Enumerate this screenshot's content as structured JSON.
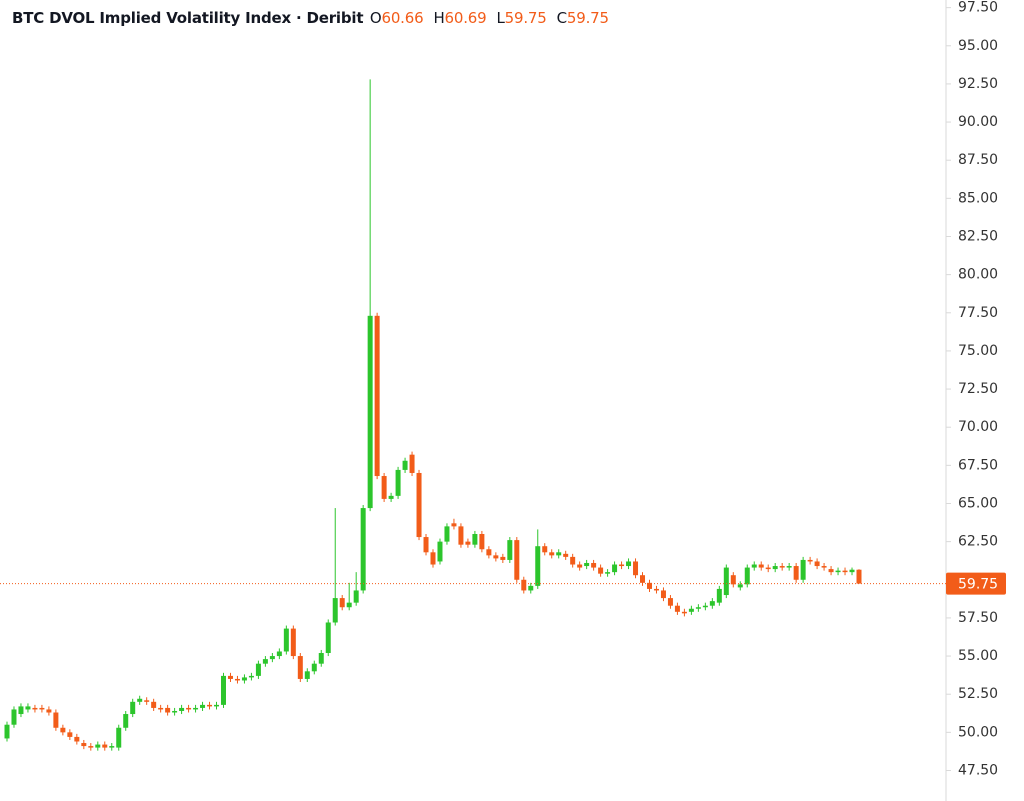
{
  "chart_data": {
    "type": "candlestick",
    "title": "BTC DVOL Implied Volatility Index · Deribit",
    "ohlc_legend": [
      {
        "label": "O",
        "value": 60.66
      },
      {
        "label": "H",
        "value": 60.69
      },
      {
        "label": "L",
        "value": 59.75
      },
      {
        "label": "C",
        "value": 59.75
      }
    ],
    "up_color": "#2cc52c",
    "down_color": "#f25c19",
    "last_price": 59.75,
    "ylim": [
      45.5,
      98.0
    ],
    "yticks": [
      {
        "value": 47.5,
        "label": "47.50"
      },
      {
        "value": 50,
        "label": "50.00"
      },
      {
        "value": 52.5,
        "label": "52.50"
      },
      {
        "value": 55,
        "label": "55.00"
      },
      {
        "value": 57.5,
        "label": "57.50"
      },
      {
        "value": 60,
        "label": "60.00"
      },
      {
        "value": 62.5,
        "label": "62.50"
      },
      {
        "value": 65,
        "label": "65.00"
      },
      {
        "value": 67.5,
        "label": "67.50"
      },
      {
        "value": 70,
        "label": "70.00"
      },
      {
        "value": 72.5,
        "label": "72.50"
      },
      {
        "value": 75,
        "label": "75.00"
      },
      {
        "value": 77.5,
        "label": "77.50"
      },
      {
        "value": 80,
        "label": "80.00"
      },
      {
        "value": 82.5,
        "label": "82.50"
      },
      {
        "value": 85,
        "label": "85.00"
      },
      {
        "value": 87.5,
        "label": "87.50"
      },
      {
        "value": 90,
        "label": "90.00"
      },
      {
        "value": 92.5,
        "label": "92.50"
      },
      {
        "value": 95,
        "label": "95.00"
      },
      {
        "value": 97.5,
        "label": "97.50"
      }
    ],
    "open": [
      49.6,
      50.5,
      51.2,
      51.5,
      51.6,
      51.6,
      51.5,
      51.3,
      50.3,
      50.0,
      49.7,
      49.3,
      49.1,
      49.0,
      49.2,
      49.0,
      49.0,
      50.3,
      51.2,
      52.0,
      52.1,
      52.0,
      51.6,
      51.6,
      51.3,
      51.4,
      51.6,
      51.5,
      51.6,
      51.8,
      51.7,
      51.8,
      53.7,
      53.5,
      53.4,
      53.6,
      53.7,
      54.5,
      54.8,
      55.0,
      55.3,
      56.8,
      55.0,
      53.5,
      54.0,
      54.5,
      55.2,
      57.2,
      58.8,
      58.2,
      58.5,
      59.3,
      64.7,
      77.3,
      66.8,
      65.3,
      65.5,
      67.2,
      68.2,
      67.0,
      62.8,
      61.8,
      61.2,
      62.5,
      63.7,
      63.5,
      62.5,
      62.3,
      63.0,
      62.0,
      61.6,
      61.5,
      61.3,
      62.6,
      60.0,
      59.3,
      59.6,
      62.2,
      61.8,
      61.6,
      61.7,
      61.5,
      61.0,
      60.9,
      61.1,
      60.8,
      60.4,
      60.5,
      61.0,
      60.9,
      61.2,
      60.3,
      59.8,
      59.4,
      59.3,
      58.8,
      58.3,
      57.9,
      57.9,
      58.1,
      58.2,
      58.3,
      58.5,
      59.0,
      60.3,
      59.5,
      59.7,
      60.8,
      61.0,
      60.8,
      60.7,
      60.9,
      60.8,
      60.9,
      60.0,
      61.3,
      61.2,
      60.9,
      60.7,
      60.5,
      60.6,
      60.5,
      60.66
    ],
    "high": [
      50.7,
      51.7,
      51.9,
      51.9,
      51.8,
      51.8,
      51.7,
      51.5,
      50.5,
      50.2,
      49.9,
      49.5,
      49.3,
      49.4,
      49.4,
      49.3,
      50.5,
      51.4,
      52.2,
      52.4,
      52.3,
      52.2,
      51.8,
      51.8,
      51.6,
      51.8,
      51.8,
      51.8,
      52.0,
      52.0,
      52.0,
      53.9,
      53.9,
      53.7,
      53.8,
      53.9,
      54.7,
      55.0,
      55.2,
      55.5,
      57.0,
      57.0,
      55.2,
      54.2,
      54.7,
      55.4,
      57.4,
      64.7,
      59.0,
      59.8,
      60.5,
      64.9,
      92.8,
      77.5,
      67.0,
      65.7,
      67.4,
      68.0,
      68.4,
      67.2,
      63.0,
      62.0,
      62.7,
      63.7,
      64.0,
      63.7,
      62.7,
      63.2,
      63.2,
      62.2,
      61.8,
      61.7,
      62.8,
      62.8,
      60.2,
      59.8,
      63.3,
      62.4,
      62.0,
      62.0,
      61.9,
      61.7,
      61.2,
      61.3,
      61.3,
      61.0,
      60.7,
      61.2,
      61.2,
      61.4,
      61.4,
      60.5,
      60.0,
      59.6,
      59.5,
      59.0,
      58.5,
      58.1,
      58.3,
      58.4,
      58.5,
      58.8,
      59.6,
      61.0,
      60.5,
      59.9,
      61.0,
      61.2,
      61.2,
      61.0,
      61.1,
      61.1,
      61.1,
      61.1,
      61.5,
      61.5,
      61.4,
      61.1,
      60.9,
      60.8,
      60.8,
      60.8,
      60.69
    ],
    "low": [
      49.4,
      50.3,
      51.0,
      51.3,
      51.3,
      51.3,
      51.1,
      50.1,
      49.8,
      49.5,
      49.2,
      48.9,
      48.8,
      48.8,
      48.8,
      48.8,
      48.8,
      50.1,
      51.0,
      51.8,
      51.8,
      51.4,
      51.3,
      51.1,
      51.1,
      51.2,
      51.3,
      51.3,
      51.4,
      51.5,
      51.5,
      51.6,
      53.3,
      53.2,
      53.2,
      53.4,
      53.5,
      54.3,
      54.6,
      54.8,
      55.1,
      54.8,
      53.3,
      53.3,
      53.8,
      54.3,
      55.0,
      57.0,
      58.0,
      58.0,
      58.3,
      59.1,
      64.5,
      66.6,
      65.1,
      65.1,
      65.3,
      67.0,
      66.8,
      62.6,
      61.6,
      60.8,
      61.0,
      62.3,
      63.3,
      62.1,
      62.1,
      62.1,
      61.8,
      61.4,
      61.2,
      61.1,
      61.1,
      59.8,
      59.1,
      59.1,
      59.4,
      61.6,
      61.4,
      61.4,
      61.3,
      60.8,
      60.6,
      60.7,
      60.6,
      60.2,
      60.2,
      60.3,
      60.7,
      60.7,
      60.1,
      59.6,
      59.2,
      59.1,
      58.6,
      58.1,
      57.7,
      57.6,
      57.7,
      57.9,
      58.0,
      58.1,
      58.3,
      58.8,
      59.5,
      59.3,
      59.5,
      60.6,
      60.6,
      60.5,
      60.5,
      60.6,
      60.6,
      59.8,
      59.8,
      61.0,
      60.7,
      60.6,
      60.3,
      60.3,
      60.3,
      60.3,
      59.75
    ],
    "close": [
      50.5,
      51.5,
      51.7,
      51.7,
      51.5,
      51.5,
      51.3,
      50.3,
      50.0,
      49.7,
      49.4,
      49.1,
      49.0,
      49.2,
      49.0,
      49.1,
      50.3,
      51.2,
      52.0,
      52.2,
      52.0,
      51.6,
      51.5,
      51.3,
      51.4,
      51.6,
      51.5,
      51.6,
      51.8,
      51.7,
      51.8,
      53.7,
      53.5,
      53.4,
      53.6,
      53.7,
      54.5,
      54.8,
      55.0,
      55.3,
      56.8,
      55.0,
      53.5,
      54.0,
      54.5,
      55.2,
      57.2,
      58.8,
      58.2,
      58.5,
      59.3,
      64.7,
      77.3,
      66.8,
      65.3,
      65.5,
      67.2,
      67.8,
      67.0,
      62.8,
      61.8,
      61.0,
      62.5,
      63.5,
      63.5,
      62.3,
      62.3,
      63.0,
      62.0,
      61.6,
      61.4,
      61.3,
      62.6,
      60.0,
      59.3,
      59.6,
      62.2,
      61.8,
      61.6,
      61.8,
      61.5,
      61.0,
      60.8,
      61.1,
      60.8,
      60.4,
      60.5,
      61.0,
      60.9,
      61.2,
      60.3,
      59.8,
      59.4,
      59.3,
      58.8,
      58.3,
      57.9,
      57.8,
      58.1,
      58.2,
      58.3,
      58.6,
      59.4,
      60.8,
      59.7,
      59.7,
      60.8,
      61.0,
      60.8,
      60.7,
      60.9,
      60.8,
      60.9,
      60.0,
      61.3,
      61.2,
      60.9,
      60.8,
      60.5,
      60.6,
      60.5,
      60.66,
      59.75
    ]
  }
}
